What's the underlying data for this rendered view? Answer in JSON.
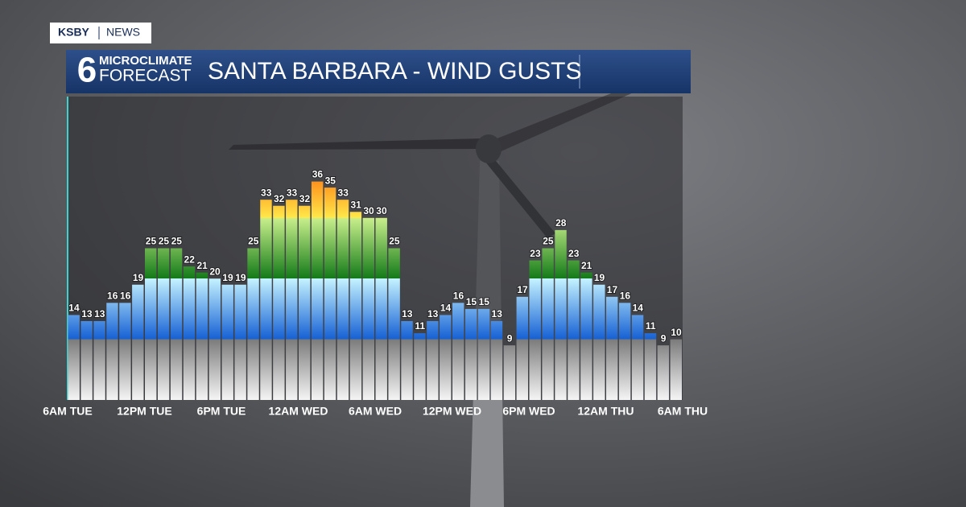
{
  "header": {
    "brand": "KSBY",
    "section": "NEWS"
  },
  "logo": {
    "number": "6",
    "line1": "MICROCLIMATE",
    "line2": "FORECAST"
  },
  "chart_data": {
    "type": "bar",
    "title": "SANTA BARBARA - WIND GUSTS",
    "x": [
      0,
      1,
      2,
      3,
      4,
      5,
      6,
      7,
      8,
      9,
      10,
      11,
      12,
      13,
      14,
      15,
      16,
      17,
      18,
      19,
      20,
      21,
      22,
      23,
      24,
      25,
      26,
      27,
      28,
      29,
      30,
      31,
      32,
      33,
      34,
      35,
      36,
      37,
      38,
      39,
      40,
      41,
      42,
      43,
      44,
      45,
      46,
      47
    ],
    "values": [
      14,
      13,
      13,
      16,
      16,
      19,
      25,
      25,
      25,
      22,
      21,
      20,
      19,
      19,
      25,
      33,
      32,
      33,
      32,
      36,
      35,
      33,
      31,
      30,
      30,
      25,
      13,
      11,
      13,
      14,
      16,
      15,
      15,
      13,
      9,
      17,
      23,
      25,
      28,
      23,
      21,
      19,
      17,
      16,
      14,
      11,
      9,
      10
    ],
    "xlim": [
      0,
      48
    ],
    "xticks": [
      {
        "value": 0,
        "label": "6AM TUE"
      },
      {
        "value": 6,
        "label": "12PM TUE"
      },
      {
        "value": 12,
        "label": "6PM TUE"
      },
      {
        "value": 18,
        "label": "12AM WED"
      },
      {
        "value": 24,
        "label": "6AM WED"
      },
      {
        "value": 30,
        "label": "12PM WED"
      },
      {
        "value": 36,
        "label": "6PM WED"
      },
      {
        "value": 42,
        "label": "12AM THU"
      },
      {
        "value": 48,
        "label": "6AM THU"
      }
    ],
    "ylim": [
      0,
      50
    ]
  }
}
